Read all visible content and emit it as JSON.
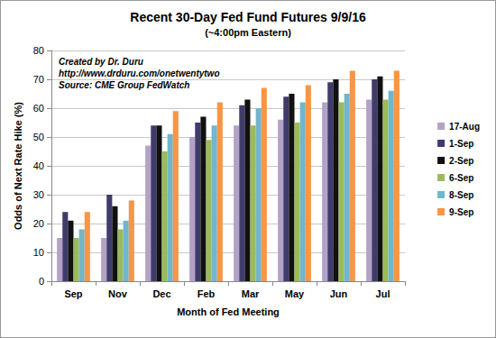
{
  "chart_data": {
    "type": "bar",
    "title": "Recent 30-Day Fed Fund Futures 9/9/16",
    "subtitle": "(~4:00pm Eastern)",
    "annotations": [
      "Created by Dr. Duru",
      "http://www.drduru.com/onetwentytwo",
      "Source: CME Group FedWatch"
    ],
    "x_label": "Month of Fed Meeting",
    "y_label": "Odds of Next Rate Hike (%)",
    "categories": [
      "Sep",
      "Nov",
      "Dec",
      "Feb",
      "Mar",
      "May",
      "Jun",
      "Jul"
    ],
    "series": [
      {
        "name": "17-Aug",
        "color": "#b3a2c7",
        "values": [
          15,
          15,
          47,
          50,
          54,
          56,
          62,
          63
        ]
      },
      {
        "name": "1-Sep",
        "color": "#3f3b6b",
        "values": [
          24,
          30,
          54,
          55,
          61,
          64,
          69,
          70
        ]
      },
      {
        "name": "2-Sep",
        "color": "#111111",
        "values": [
          21,
          26,
          54,
          57,
          63,
          65,
          70,
          71
        ]
      },
      {
        "name": "6-Sep",
        "color": "#9bbb59",
        "values": [
          15,
          18,
          45,
          49,
          54,
          55,
          62,
          63
        ]
      },
      {
        "name": "8-Sep",
        "color": "#6fb7cf",
        "values": [
          18,
          21,
          51,
          54,
          60,
          62,
          65,
          66
        ]
      },
      {
        "name": "9-Sep",
        "color": "#f79646",
        "values": [
          24,
          28,
          59,
          62,
          67,
          68,
          73,
          73
        ]
      }
    ],
    "ylim": [
      0,
      80
    ],
    "yticks": [
      0,
      10,
      20,
      30,
      40,
      50,
      60,
      70,
      80
    ],
    "grid": true,
    "legend": "right"
  }
}
